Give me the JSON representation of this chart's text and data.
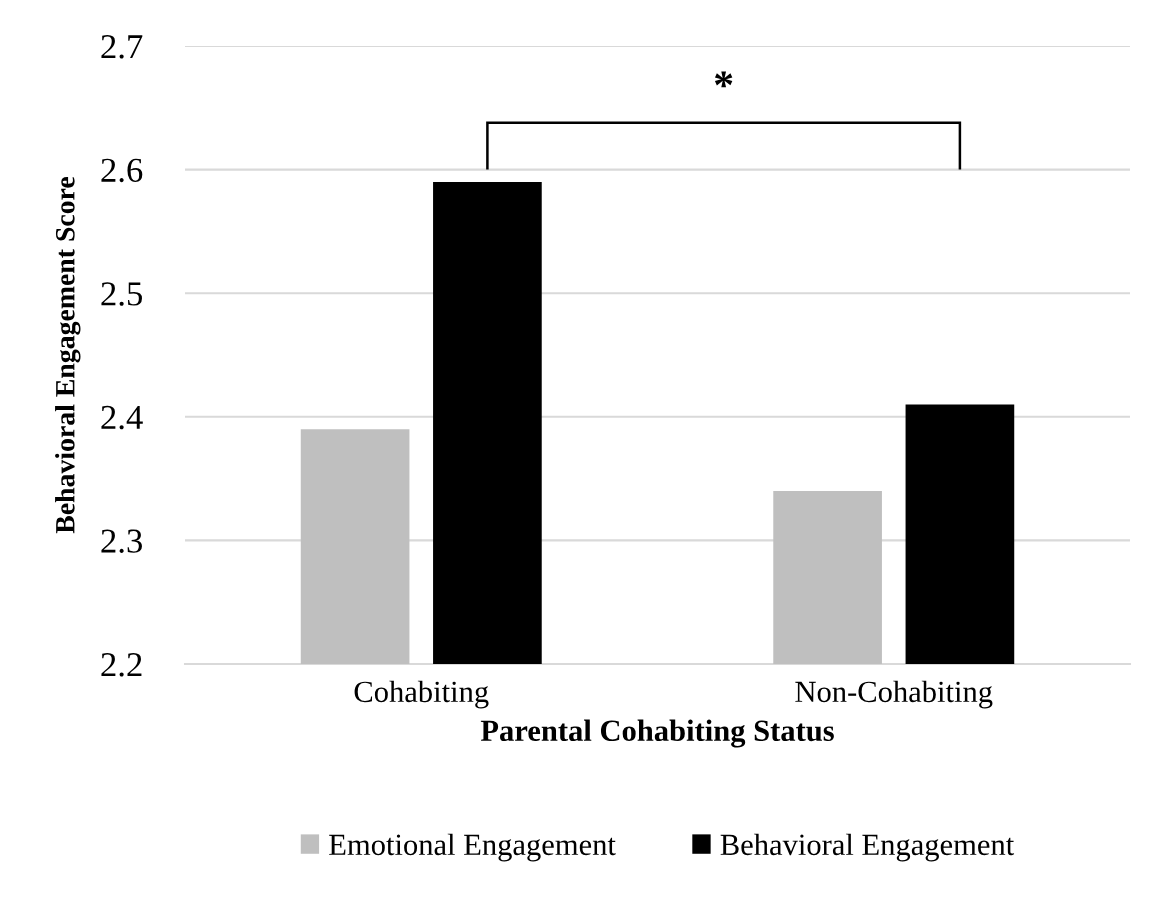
{
  "chart_data": {
    "type": "bar",
    "xlabel": "Parental Cohabiting Status",
    "ylabel": "Behavioral Engagement Score",
    "categories": [
      "Cohabiting",
      "Non-Cohabiting"
    ],
    "series": [
      {
        "name": "Emotional Engagement",
        "color": "#bfbfbf",
        "values": [
          2.39,
          2.34
        ]
      },
      {
        "name": "Behavioral Engagement",
        "color": "#000000",
        "values": [
          2.59,
          2.41
        ]
      }
    ],
    "ylim": [
      2.2,
      2.7
    ],
    "yticks": [
      2.2,
      2.3,
      2.4,
      2.5,
      2.6,
      2.7
    ],
    "grid": "y",
    "legend": "bottom",
    "annotations": [
      "*"
    ]
  }
}
